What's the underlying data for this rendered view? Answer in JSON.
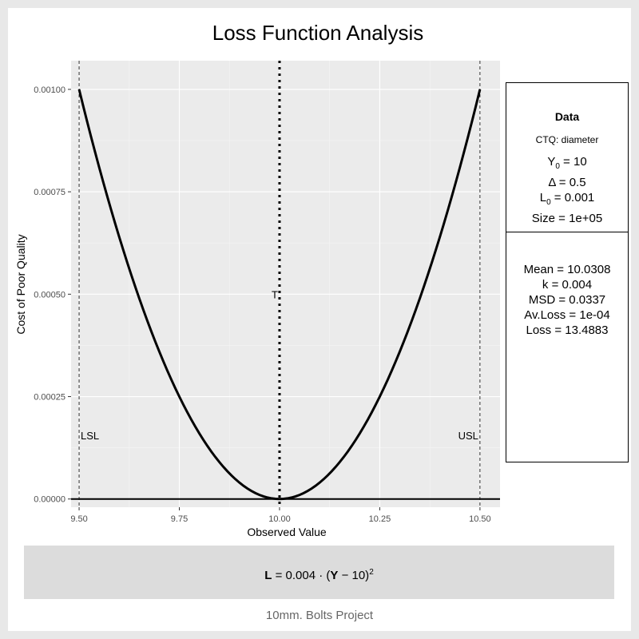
{
  "title": "Loss Function Analysis",
  "chart_data": {
    "type": "line",
    "xlabel": "Observed Value",
    "ylabel": "Cost of Poor Quality",
    "xlim": [
      9.48,
      10.55
    ],
    "ylim": [
      -2e-05,
      0.00107
    ],
    "x_ticks": [
      9.5,
      9.75,
      10.0,
      10.25,
      10.5
    ],
    "x_tick_labels": [
      "9.50",
      "9.75",
      "10.00",
      "10.25",
      "10.50"
    ],
    "y_ticks": [
      0,
      0.00025,
      0.0005,
      0.00075,
      0.001
    ],
    "y_tick_labels": [
      "0.00000",
      "0.00025",
      "0.00050",
      "0.00075",
      "0.00100"
    ],
    "grid": true,
    "series": [
      {
        "formula_k": 0.004,
        "target": 10,
        "x_from": 9.5,
        "x_to": 10.5
      }
    ],
    "baseline_y": 0,
    "spec_lines": [
      {
        "label": "LSL",
        "x": 9.5
      },
      {
        "label": "T",
        "x": 10.0
      },
      {
        "label": "USL",
        "x": 10.5
      }
    ]
  },
  "panel_data": {
    "heading": "Data",
    "ctq": "CTQ: diameter",
    "y0_symbol": "Y",
    "y0_sub": "0",
    "y0_value": " = 10",
    "delta": "Δ = 0.5",
    "l0_symbol": "L",
    "l0_sub": "0",
    "l0_value": " = 0.001",
    "size": "Size = 1e+05"
  },
  "panel_results": {
    "mean": "Mean = 10.0308",
    "k": "k = 0.004",
    "msd": "MSD = 0.0337",
    "avloss": "Av.Loss = 1e-04",
    "loss": "Loss = 13.4883"
  },
  "formula": {
    "L": "L",
    "eq": " = 0.004 · (",
    "Y": "Y",
    "minus": " − 10)",
    "exp": "2"
  },
  "footer": "10mm. Bolts Project"
}
